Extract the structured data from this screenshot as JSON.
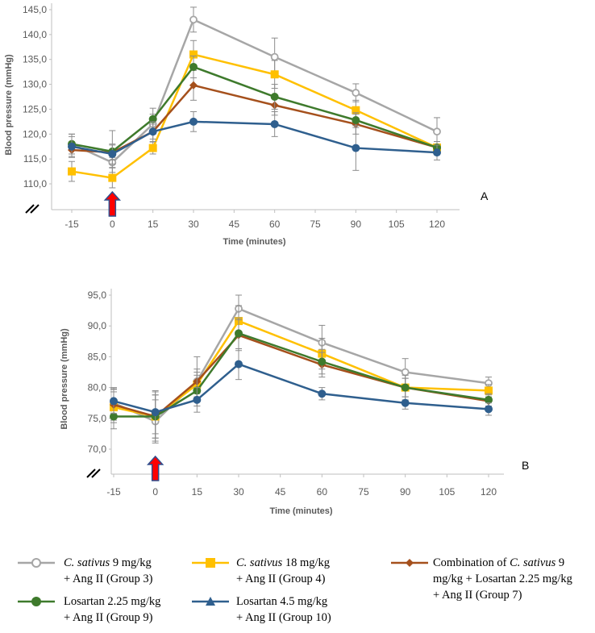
{
  "chart_data": [
    {
      "type": "line",
      "panel_label": "A",
      "ylabel": "Blood pressure (mmHg)",
      "xlabel": "Time (minutes)",
      "x": [
        -15,
        0,
        15,
        30,
        60,
        90,
        120
      ],
      "xticks": [
        "-15",
        "0",
        "15",
        "30",
        "45",
        "60",
        "75",
        "90",
        "105",
        "120"
      ],
      "yticks": [
        "110,0",
        "115,0",
        "120,0",
        "125,0",
        "130,0",
        "135,0",
        "140,0",
        "145,0"
      ],
      "ylim": [
        108,
        145
      ],
      "ytick_values": [
        110,
        115,
        120,
        125,
        130,
        135,
        140,
        145
      ],
      "xtick_values": [
        -15,
        0,
        15,
        30,
        45,
        60,
        75,
        90,
        105,
        120
      ],
      "arrow_at_x": 0,
      "series": [
        {
          "name": "C. sativus 9 mg/kg + Ang II (Group 3)",
          "color": "#a6a6a6",
          "marker": "open-circle",
          "values": [
            118.0,
            114.3,
            122.0,
            143.0,
            135.5,
            128.3,
            120.5
          ],
          "errors": [
            2.0,
            1.0,
            2.0,
            2.5,
            3.8,
            1.8,
            2.8
          ]
        },
        {
          "name": "C. sativus 18 mg/kg + Ang II (Group 4)",
          "color": "#ffc000",
          "marker": "square",
          "values": [
            112.5,
            111.2,
            117.2,
            136.0,
            132.0,
            124.8,
            117.3
          ],
          "errors": [
            2.0,
            2.0,
            1.2,
            2.8,
            2.8,
            2.0,
            1.2
          ]
        },
        {
          "name": "Combination of C. sativus 9 mg/kg + Losartan 2.25 mg/kg + Ang II (Group 7)",
          "color": "#a5501c",
          "marker": "diamond",
          "values": [
            116.8,
            116.3,
            120.5,
            129.8,
            125.8,
            122.0,
            117.3
          ],
          "errors": [
            1.5,
            1.5,
            1.5,
            3.0,
            2.0,
            2.0,
            1.2
          ]
        },
        {
          "name": "Losartan 2.25 mg/kg + Ang II (Group 9)",
          "color": "#3e7a2c",
          "marker": "circle",
          "values": [
            118.0,
            116.5,
            123.0,
            133.5,
            127.5,
            122.8,
            117.3
          ],
          "errors": [
            2.0,
            4.2,
            2.2,
            2.2,
            2.5,
            1.5,
            1.2
          ]
        },
        {
          "name": "Losartan 4.5 mg/kg + Ang II (Group 10)",
          "color": "#2f5f8e",
          "marker": "circle",
          "values": [
            117.5,
            116.0,
            120.5,
            122.5,
            122.0,
            117.2,
            116.3
          ],
          "errors": [
            2.0,
            2.0,
            2.0,
            2.0,
            2.5,
            4.5,
            1.5
          ]
        }
      ]
    },
    {
      "type": "line",
      "panel_label": "B",
      "ylabel": "Blood pressure (mmHg)",
      "xlabel": "Time (minutes)",
      "x": [
        -15,
        0,
        15,
        30,
        60,
        90,
        120
      ],
      "xticks": [
        "-15",
        "0",
        "15",
        "30",
        "45",
        "60",
        "75",
        "90",
        "105",
        "120"
      ],
      "yticks": [
        "70,0",
        "75,0",
        "80,0",
        "85,0",
        "90,0",
        "95,0"
      ],
      "ylim": [
        68,
        95
      ],
      "ytick_values": [
        70,
        75,
        80,
        85,
        90,
        95
      ],
      "xtick_values": [
        -15,
        0,
        15,
        30,
        45,
        60,
        75,
        90,
        105,
        120
      ],
      "arrow_at_x": 0,
      "series": [
        {
          "name": "C. sativus 9 mg/kg + Ang II (Group 3)",
          "color": "#a6a6a6",
          "marker": "open-circle",
          "values": [
            77.5,
            74.5,
            81.0,
            92.8,
            87.3,
            82.5,
            80.7
          ],
          "errors": [
            2.5,
            3.5,
            2.0,
            2.2,
            2.8,
            2.2,
            1.0
          ]
        },
        {
          "name": "C. sativus 18 mg/kg + Ang II (Group 4)",
          "color": "#ffc000",
          "marker": "square",
          "values": [
            76.8,
            75.3,
            80.5,
            90.8,
            85.5,
            80.0,
            79.5
          ],
          "errors": [
            2.5,
            3.5,
            2.0,
            2.5,
            2.5,
            2.0,
            1.0
          ]
        },
        {
          "name": "Combination of C. sativus 9 mg/kg + Losartan 2.25 mg/kg + Ang II (Group 7)",
          "color": "#a5501c",
          "marker": "diamond",
          "values": [
            77.2,
            75.3,
            81.0,
            88.5,
            83.7,
            80.0,
            77.8
          ],
          "errors": [
            2.5,
            3.5,
            4.0,
            2.5,
            2.0,
            1.5,
            1.0
          ]
        },
        {
          "name": "Losartan 2.25 mg/kg + Ang II (Group 9)",
          "color": "#3e7a2c",
          "marker": "circle",
          "values": [
            75.3,
            75.3,
            79.5,
            88.8,
            84.2,
            80.0,
            78.0
          ],
          "errors": [
            2.0,
            4.0,
            2.5,
            2.5,
            2.0,
            1.5,
            1.0
          ]
        },
        {
          "name": "Losartan 4.5 mg/kg + Ang II (Group 10)",
          "color": "#2f5f8e",
          "marker": "circle",
          "values": [
            77.8,
            76.0,
            78.0,
            83.8,
            79.0,
            77.5,
            76.5
          ],
          "errors": [
            2.0,
            3.5,
            2.0,
            2.5,
            1.0,
            1.0,
            1.0
          ]
        }
      ]
    }
  ],
  "legend": [
    {
      "italic": "C. sativus",
      "rest1": " 9 mg/kg",
      "line2": "+ Ang II (Group 3)"
    },
    {
      "italic": "C. sativus",
      "rest1": " 18 mg/kg",
      "line2": "+ Ang II (Group 4)"
    },
    {
      "pre": "Combination of ",
      "italic": "C. sativus",
      "rest1": " 9",
      "line2": "mg/kg + Losartan 2.25 mg/kg",
      "line3": "+ Ang II (Group 7)"
    },
    {
      "pre": "",
      "italic": "",
      "rest1": "Losartan 2.25 mg/kg",
      "line2": "+ Ang II (Group 9)"
    },
    {
      "pre": "",
      "italic": "",
      "rest1": "Losartan 4.5 mg/kg",
      "line2": "+ Ang II (Group 10)"
    }
  ]
}
